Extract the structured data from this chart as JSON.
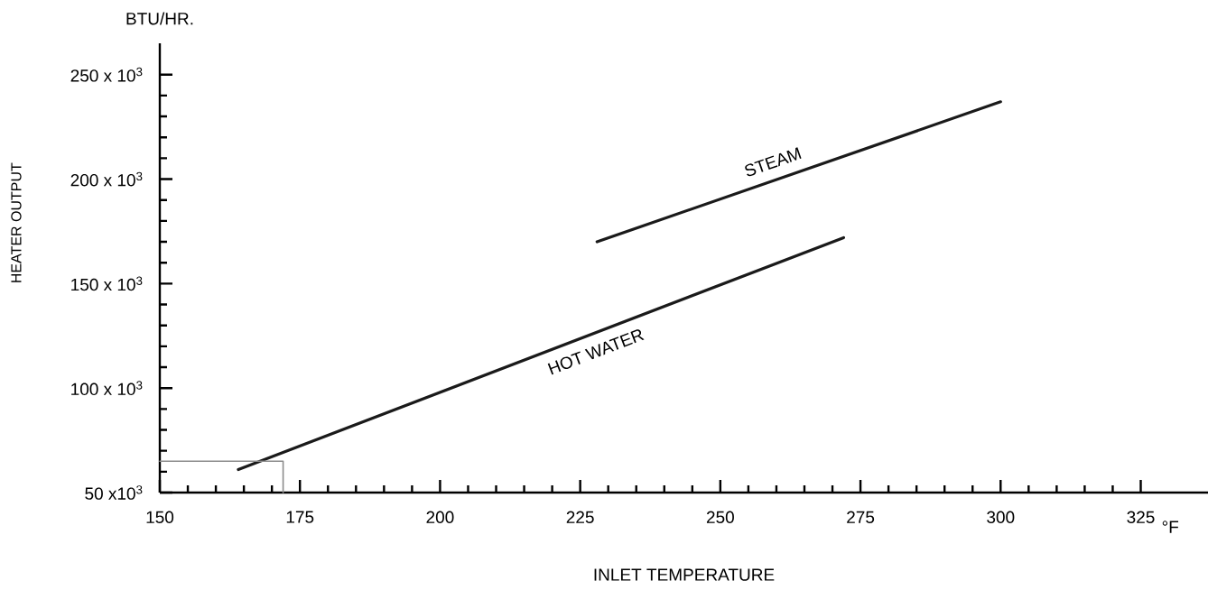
{
  "chart_data": {
    "type": "line",
    "xlabel": "INLET TEMPERATURE",
    "ylabel": "HEATER OUTPUT",
    "annotations": [
      "BTU/HR.",
      "°F"
    ],
    "xlim": [
      150,
      337
    ],
    "ylim": [
      50000,
      265000
    ],
    "xticks": [
      150,
      {
        "value": 155,
        "label": null
      },
      {
        "value": 160,
        "label": null
      },
      {
        "value": 165,
        "label": null
      },
      {
        "value": 170,
        "label": null
      },
      175,
      {
        "value": 180,
        "label": null
      },
      {
        "value": 185,
        "label": null
      },
      {
        "value": 190,
        "label": null
      },
      {
        "value": 195,
        "label": null
      },
      200,
      {
        "value": 205,
        "label": null
      },
      {
        "value": 210,
        "label": null
      },
      {
        "value": 215,
        "label": null
      },
      {
        "value": 220,
        "label": null
      },
      225,
      {
        "value": 230,
        "label": null
      },
      {
        "value": 235,
        "label": null
      },
      {
        "value": 240,
        "label": null
      },
      {
        "value": 245,
        "label": null
      },
      250,
      {
        "value": 255,
        "label": null
      },
      {
        "value": 260,
        "label": null
      },
      {
        "value": 265,
        "label": null
      },
      {
        "value": 270,
        "label": null
      },
      275,
      {
        "value": 280,
        "label": null
      },
      {
        "value": 285,
        "label": null
      },
      {
        "value": 290,
        "label": null
      },
      {
        "value": 295,
        "label": null
      },
      300,
      {
        "value": 305,
        "label": null
      },
      {
        "value": 310,
        "label": null
      },
      {
        "value": 315,
        "label": null
      },
      {
        "value": 320,
        "label": null
      },
      325
    ],
    "yticks": [
      {
        "value": 50000,
        "label": "50 x10$^{3}$"
      },
      {
        "value": 60000,
        "label": null
      },
      {
        "value": 70000,
        "label": null
      },
      {
        "value": 80000,
        "label": null
      },
      {
        "value": 90000,
        "label": null
      },
      {
        "value": 100000,
        "label": "100 x 10$^{3}$"
      },
      {
        "value": 110000,
        "label": null
      },
      {
        "value": 120000,
        "label": null
      },
      {
        "value": 130000,
        "label": null
      },
      {
        "value": 140000,
        "label": null
      },
      {
        "value": 150000,
        "label": "150 x 10$^{3}$"
      },
      {
        "value": 160000,
        "label": null
      },
      {
        "value": 170000,
        "label": null
      },
      {
        "value": 180000,
        "label": null
      },
      {
        "value": 190000,
        "label": null
      },
      {
        "value": 200000,
        "label": "200 x 10$^{3}$"
      },
      {
        "value": 210000,
        "label": null
      },
      {
        "value": 220000,
        "label": null
      },
      {
        "value": 230000,
        "label": null
      },
      {
        "value": 240000,
        "label": null
      },
      {
        "value": 250000,
        "label": "250 x 10$^{3}$"
      }
    ],
    "series": [
      {
        "name": "HOT WATER",
        "color": "#1a1a1a",
        "x": [
          164,
          272
        ],
        "values": [
          61000,
          172000
        ]
      },
      {
        "name": "STEAM",
        "color": "#1a1a1a",
        "x": [
          228,
          300
        ],
        "values": [
          170000,
          237000
        ]
      },
      {
        "color": "#8c8c8c",
        "x": [
          150,
          172,
          172
        ],
        "values": [
          65000,
          65000,
          50000
        ]
      }
    ]
  }
}
